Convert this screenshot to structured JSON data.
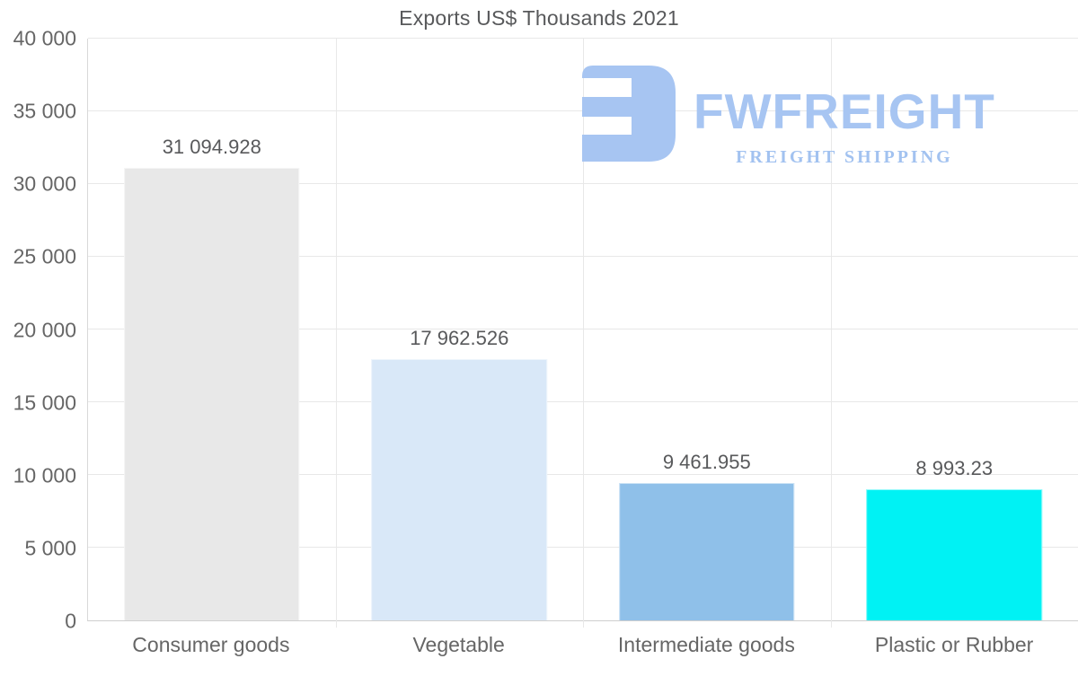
{
  "title": "Exports US$ Thousands 2021",
  "watermark": {
    "wordmark": "FWFREIGHT",
    "subtitle": "FREIGHT SHIPPING",
    "color": "#a7c5f2",
    "icon": "stylized-f-freight-logo-icon"
  },
  "chart_data": {
    "type": "bar",
    "title": "Exports US$ Thousands 2021",
    "categories": [
      "Consumer goods",
      "Vegetable",
      "Intermediate goods",
      "Plastic or Rubber"
    ],
    "values": [
      31094.928,
      17962.526,
      9461.955,
      8993.23
    ],
    "value_labels": [
      "31 094.928",
      "17 962.526",
      "9 461.955",
      "8 993.23"
    ],
    "bar_colors": [
      "#e8e8e8",
      "#d9e8f8",
      "#8fc0e9",
      "#00f2f4"
    ],
    "xlabel": "",
    "ylabel": "",
    "ylim": [
      0,
      40000
    ],
    "ytick_step": 5000,
    "ytick_labels": [
      "0",
      "5 000",
      "10 000",
      "15 000",
      "20 000",
      "25 000",
      "30 000",
      "35 000",
      "40 000"
    ],
    "grid": true,
    "legend": false
  },
  "colors": {
    "grid": "#e8e8e8",
    "axis": "#d9d9d9",
    "title_text": "#58595b",
    "tick_text": "#666666",
    "value_text": "#58595b"
  }
}
